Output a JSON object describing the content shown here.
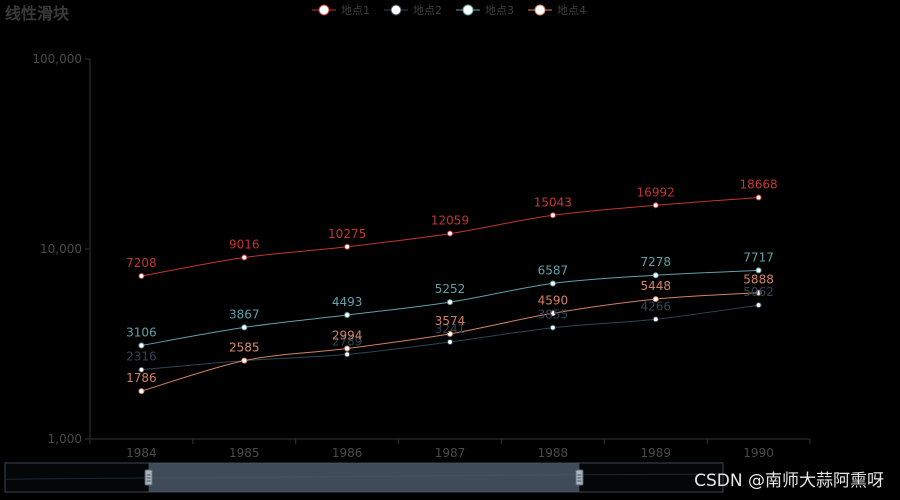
{
  "chart_data": {
    "type": "line",
    "title": "线性滑块",
    "categories": [
      "1984",
      "1985",
      "1986",
      "1987",
      "1988",
      "1989",
      "1990"
    ],
    "y_scale": "log",
    "ylim": [
      1000,
      100000
    ],
    "y_ticks": [
      "1,000",
      "10,000",
      "100,000"
    ],
    "y_tick_values": [
      1000,
      10000,
      100000
    ],
    "grid": false,
    "legend_position": "top-center",
    "series": [
      {
        "name": "地点1",
        "color": "#c23531",
        "values": [
          7208,
          9016,
          10275,
          12059,
          15043,
          16992,
          18668
        ]
      },
      {
        "name": "地点2",
        "color": "#2f4554",
        "values": [
          2316,
          2585,
          2789,
          3241,
          3855,
          4266,
          5062
        ]
      },
      {
        "name": "地点3",
        "color": "#61a0a8",
        "values": [
          3106,
          3867,
          4493,
          5252,
          6587,
          7278,
          7717
        ]
      },
      {
        "name": "地点4",
        "color": "#d48265",
        "values": [
          1786,
          2585,
          2994,
          3574,
          4590,
          5448,
          5888
        ]
      }
    ],
    "data_zoom": {
      "type": "slider",
      "start": 0.2,
      "end": 0.8
    }
  },
  "watermark": "CSDN @南师大蒜阿熏呀"
}
